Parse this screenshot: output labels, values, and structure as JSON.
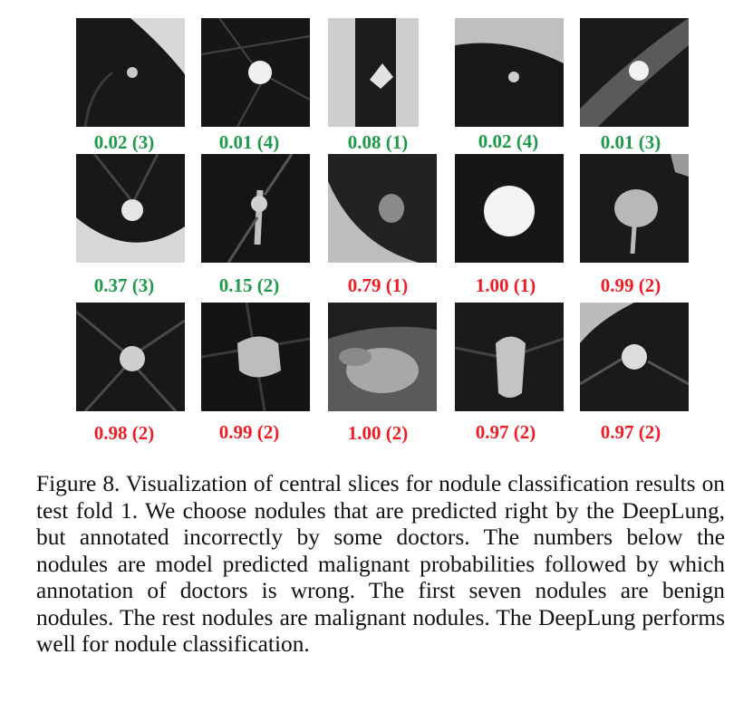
{
  "figure": {
    "panels": [
      {
        "label": "0.02 (3)",
        "class": "benign"
      },
      {
        "label": "0.01 (4)",
        "class": "benign"
      },
      {
        "label": "0.08 (1)",
        "class": "benign"
      },
      {
        "label": "0.02 (4)",
        "class": "benign"
      },
      {
        "label": "0.01 (3)",
        "class": "benign"
      },
      {
        "label": "0.37 (3)",
        "class": "benign"
      },
      {
        "label": "0.15 (2)",
        "class": "benign"
      },
      {
        "label": "0.79 (1)",
        "class": "malignant"
      },
      {
        "label": "1.00 (1)",
        "class": "malignant"
      },
      {
        "label": "0.99 (2)",
        "class": "malignant"
      },
      {
        "label": "0.98 (2)",
        "class": "malignant"
      },
      {
        "label": "0.99 (2)",
        "class": "malignant"
      },
      {
        "label": "1.00 (2)",
        "class": "malignant"
      },
      {
        "label": "0.97 (2)",
        "class": "malignant"
      },
      {
        "label": "0.97 (2)",
        "class": "malignant"
      }
    ],
    "colors": {
      "benign": "#1f9a4a",
      "malignant": "#ee1c24"
    },
    "caption": "Figure 8. Visualization of central slices for nodule classification results on test fold 1. We choose nodules that are predicted right by the DeepLung, but annotated incorrectly by some doctors. The numbers below the nodules are model predicted malignant probabilities followed by which annotation of doctors is wrong. The first seven nodules are benign nodules. The rest nodules are malignant nodules. The DeepLung performs well for nodule classification."
  }
}
